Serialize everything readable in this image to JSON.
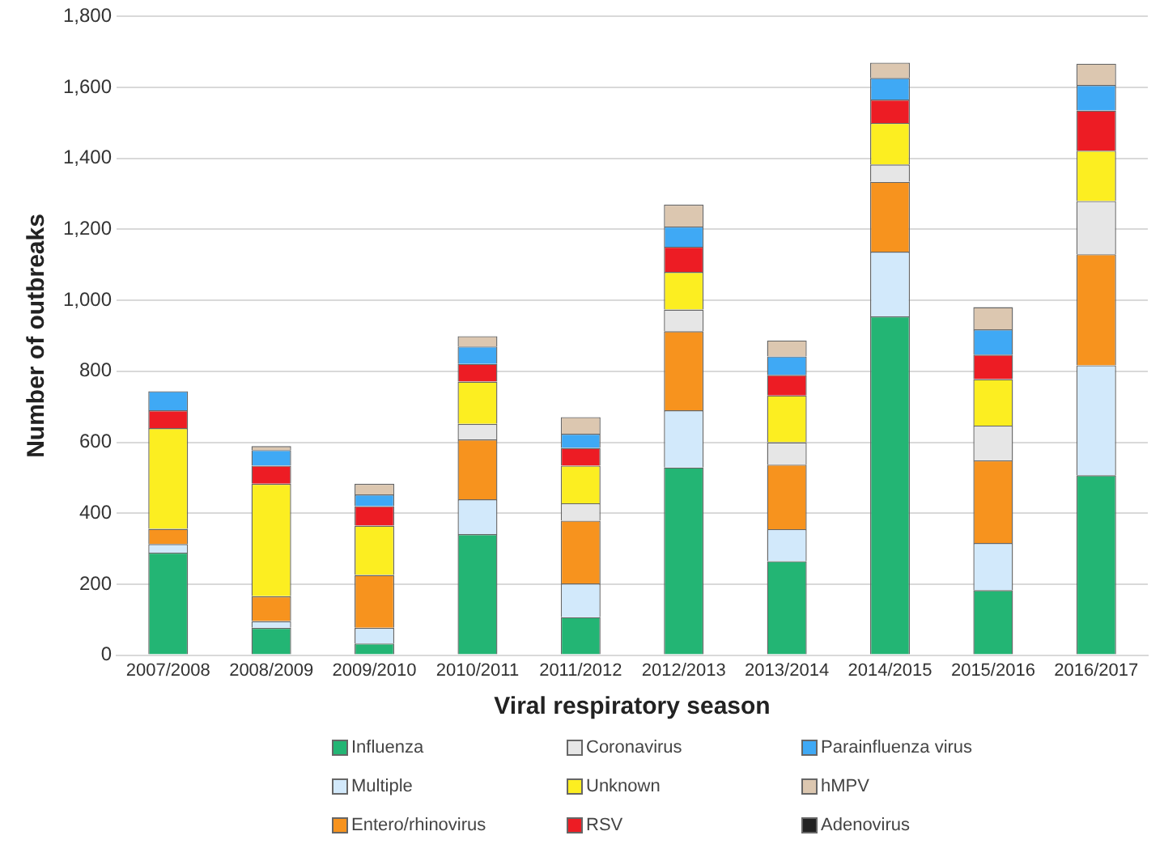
{
  "chart_data": {
    "type": "bar",
    "stacked": true,
    "xlabel": "Viral respiratory season",
    "ylabel": "Number of outbreaks",
    "categories": [
      "2007/2008",
      "2008/2009",
      "2009/2010",
      "2010/2011",
      "2011/2012",
      "2012/2013",
      "2013/2014",
      "2014/2015",
      "2015/2016",
      "2016/2017"
    ],
    "series": [
      {
        "name": "Influenza",
        "color": "#23b574",
        "values": [
          289,
          77,
          33,
          341,
          107,
          529,
          265,
          955,
          183,
          507
        ]
      },
      {
        "name": "Multiple",
        "color": "#d2e9fb",
        "values": [
          24,
          19,
          44,
          98,
          95,
          161,
          90,
          182,
          133,
          310
        ]
      },
      {
        "name": "Entero/rhinovirus",
        "color": "#f7931e",
        "values": [
          43,
          70,
          149,
          169,
          177,
          223,
          182,
          197,
          233,
          313
        ]
      },
      {
        "name": "Coronavirus",
        "color": "#e6e6e6",
        "values": [
          0,
          0,
          0,
          44,
          49,
          61,
          63,
          49,
          98,
          150
        ]
      },
      {
        "name": "Unknown",
        "color": "#fcee21",
        "values": [
          284,
          317,
          139,
          119,
          106,
          106,
          132,
          117,
          131,
          142
        ]
      },
      {
        "name": "RSV",
        "color": "#ed1c24",
        "values": [
          50,
          51,
          55,
          50,
          50,
          71,
          58,
          66,
          69,
          113
        ]
      },
      {
        "name": "Parainfluenza virus",
        "color": "#3fa9f5",
        "values": [
          54,
          44,
          33,
          49,
          40,
          57,
          52,
          61,
          71,
          72
        ]
      },
      {
        "name": "hMPV",
        "color": "#dcc7b0",
        "values": [
          0,
          11,
          30,
          29,
          47,
          62,
          45,
          43,
          63,
          60
        ]
      },
      {
        "name": "Adenovirus",
        "color": "#222222",
        "values": [
          0,
          0,
          0,
          0,
          0,
          0,
          0,
          0,
          0,
          0
        ]
      }
    ],
    "ylim": [
      0,
      1800
    ],
    "yticks": [
      0,
      200,
      400,
      600,
      800,
      {
        "value": 1000,
        "label": "1,000"
      },
      {
        "value": 1200,
        "label": "1,200"
      },
      {
        "value": 1400,
        "label": "1,400"
      },
      {
        "value": 1600,
        "label": "1,600"
      },
      {
        "value": 1800,
        "label": "1,800"
      }
    ],
    "grid": "y",
    "legend": "bottom"
  }
}
